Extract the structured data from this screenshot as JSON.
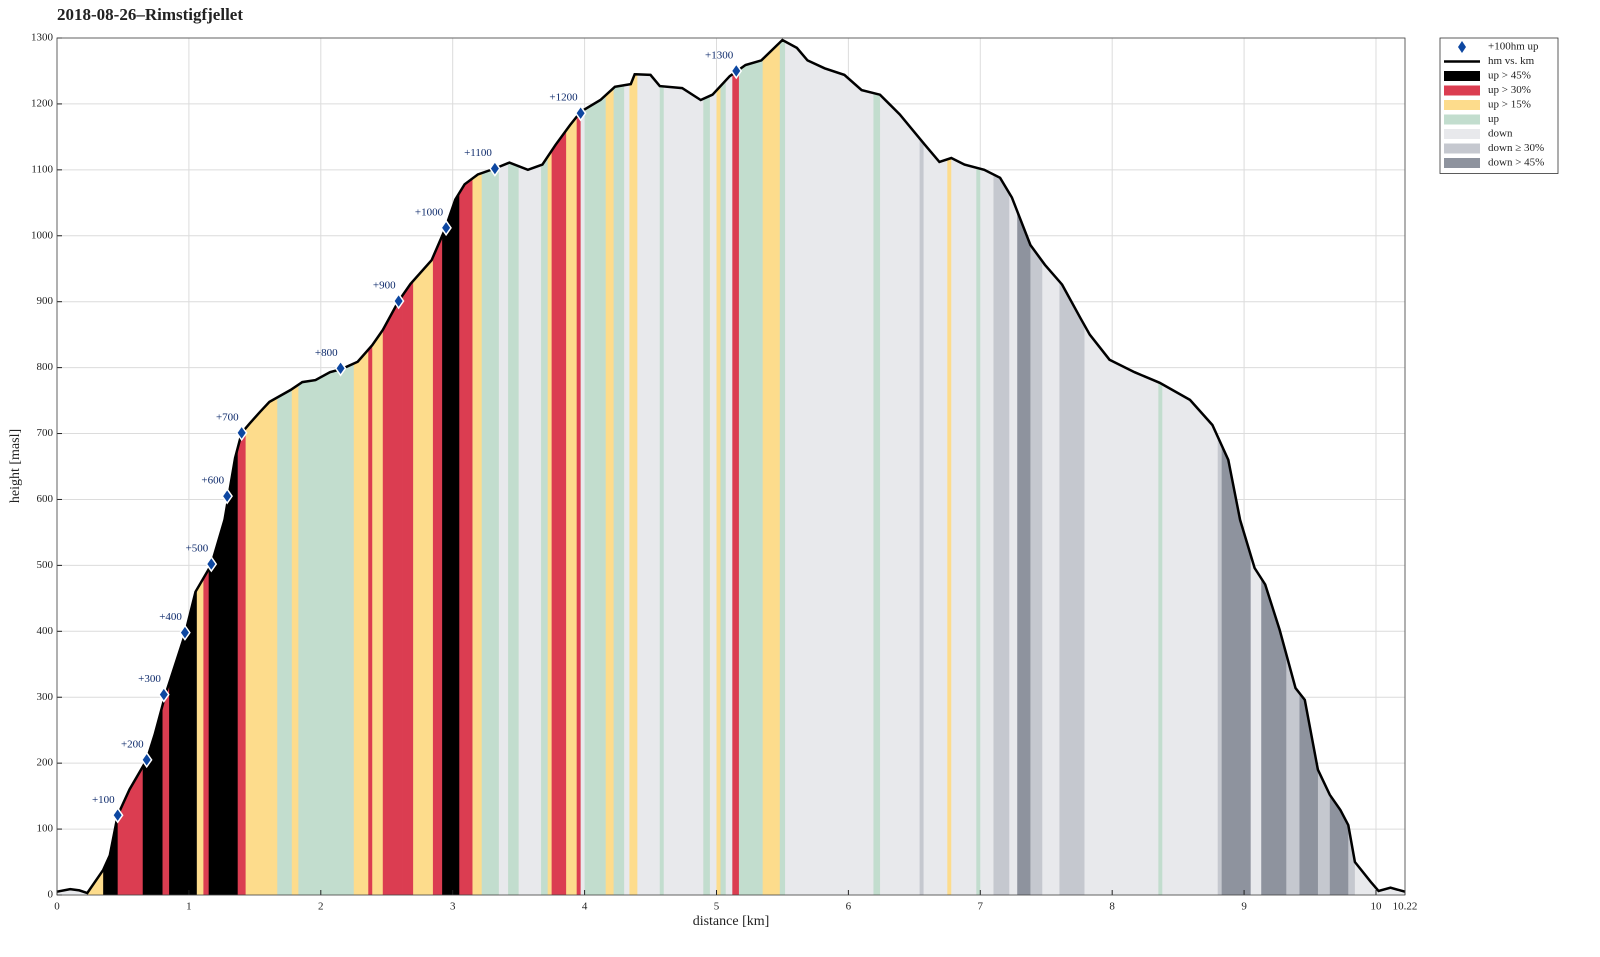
{
  "chart_data": {
    "type": "area",
    "title": "2018-08-26–Rimstigfjellet",
    "x_label": "distance [km]",
    "y_label": "height [masl]",
    "xlim": [
      0,
      10.22
    ],
    "ylim": [
      0,
      1300
    ],
    "xticks": [
      0,
      1,
      2,
      3,
      4,
      5,
      6,
      7,
      8,
      9,
      10,
      10.22
    ],
    "yticks": [
      0,
      100,
      200,
      300,
      400,
      500,
      600,
      700,
      800,
      900,
      1000,
      1100,
      1200,
      1300
    ],
    "grid": true,
    "legend": "outside-top-right",
    "profile": {
      "name": "hm vs. km",
      "color": "#000000",
      "x": [
        0,
        0.1,
        0.17,
        0.23,
        0.35,
        0.4,
        0.46,
        0.55,
        0.68,
        0.74,
        0.82,
        0.97,
        1.05,
        1.17,
        1.27,
        1.35,
        1.4,
        1.46,
        1.54,
        1.61,
        1.77,
        1.86,
        1.96,
        2.07,
        2.16,
        2.28,
        2.39,
        2.47,
        2.59,
        2.68,
        2.84,
        2.94,
        3.02,
        3.09,
        3.19,
        3.32,
        3.43,
        3.57,
        3.68,
        3.78,
        3.89,
        3.97,
        4.12,
        4.23,
        4.35,
        4.38,
        4.5,
        4.57,
        4.74,
        4.88,
        4.97,
        5.1,
        5.22,
        5.34,
        5.5,
        5.61,
        5.69,
        5.82,
        5.97,
        6.1,
        6.24,
        6.39,
        6.58,
        6.69,
        6.78,
        6.88,
        7.03,
        7.15,
        7.24,
        7.38,
        7.49,
        7.62,
        7.76,
        7.83,
        7.98,
        8.17,
        8.36,
        8.59,
        8.76,
        8.88,
        8.97,
        9.08,
        9.16,
        9.27,
        9.39,
        9.46,
        9.56,
        9.65,
        9.73,
        9.79,
        9.84,
        9.96,
        10.02,
        10.11,
        10.22
      ],
      "values": [
        5,
        9,
        7,
        3,
        38,
        60,
        121,
        160,
        205,
        243,
        303,
        395,
        460,
        501,
        569,
        663,
        701,
        715,
        733,
        748,
        766,
        778,
        781,
        793,
        798,
        809,
        834,
        857,
        901,
        927,
        963,
        1009,
        1055,
        1078,
        1093,
        1102,
        1111,
        1100,
        1108,
        1138,
        1168,
        1188,
        1206,
        1226,
        1230,
        1245,
        1244,
        1227,
        1224,
        1206,
        1214,
        1242,
        1259,
        1266,
        1297,
        1285,
        1266,
        1254,
        1244,
        1221,
        1214,
        1184,
        1138,
        1112,
        1118,
        1108,
        1100,
        1088,
        1058,
        986,
        956,
        926,
        875,
        850,
        812,
        793,
        777,
        751,
        713,
        660,
        569,
        496,
        471,
        402,
        314,
        296,
        190,
        152,
        129,
        106,
        50,
        20,
        6,
        11,
        5
      ]
    },
    "markers": {
      "name": "+100hm up",
      "color": "#0d47a1",
      "x": [
        0.46,
        0.68,
        0.81,
        0.97,
        1.17,
        1.29,
        1.4,
        2.15,
        2.59,
        2.95,
        3.32,
        3.97,
        5.15
      ],
      "values": [
        121,
        205,
        304,
        398,
        502,
        605,
        701,
        799,
        901,
        1012,
        1102,
        1186,
        1250
      ],
      "labels": [
        "+100",
        "+200",
        "+300",
        "+400",
        "+500",
        "+600",
        "+700",
        "+800",
        "+900",
        "+1000",
        "+1100",
        "+1200",
        "+1300"
      ]
    },
    "kinds": [
      {
        "name": "up > 45%",
        "color": "#000000"
      },
      {
        "name": "up > 30%",
        "color": "#db3d51"
      },
      {
        "name": "up > 15%",
        "color": "#fddc8c"
      },
      {
        "name": "up",
        "color": "#c2ddce"
      },
      {
        "name": "down",
        "color": "#e8e9ec"
      },
      {
        "name": "down ≥ 30%",
        "color": "#c5c8cf"
      },
      {
        "name": "down > 45%",
        "color": "#8e939e"
      }
    ],
    "bands": [
      [
        0,
        0.23,
        "down"
      ],
      [
        0.23,
        0.35,
        "up > 15%"
      ],
      [
        0.35,
        0.46,
        "up > 45%"
      ],
      [
        0.46,
        0.65,
        "up > 30%"
      ],
      [
        0.65,
        0.8,
        "up > 45%"
      ],
      [
        0.8,
        0.85,
        "up > 30%"
      ],
      [
        0.85,
        1.06,
        "up > 45%"
      ],
      [
        1.06,
        1.11,
        "up > 15%"
      ],
      [
        1.11,
        1.15,
        "up > 30%"
      ],
      [
        1.15,
        1.37,
        "up > 45%"
      ],
      [
        1.37,
        1.43,
        "up > 30%"
      ],
      [
        1.43,
        1.67,
        "up > 15%"
      ],
      [
        1.67,
        1.78,
        "up"
      ],
      [
        1.78,
        1.83,
        "up > 15%"
      ],
      [
        1.83,
        2.25,
        "up"
      ],
      [
        2.25,
        2.36,
        "up > 15%"
      ],
      [
        2.36,
        2.39,
        "up > 30%"
      ],
      [
        2.39,
        2.47,
        "up > 15%"
      ],
      [
        2.47,
        2.62,
        "up > 30%"
      ],
      [
        2.62,
        2.7,
        "up > 30%"
      ],
      [
        2.7,
        2.85,
        "up > 15%"
      ],
      [
        2.85,
        2.92,
        "up > 30%"
      ],
      [
        2.92,
        3.05,
        "up > 45%"
      ],
      [
        3.05,
        3.15,
        "up > 30%"
      ],
      [
        3.15,
        3.22,
        "up > 15%"
      ],
      [
        3.22,
        3.35,
        "up"
      ],
      [
        3.35,
        3.42,
        "down"
      ],
      [
        3.42,
        3.5,
        "up"
      ],
      [
        3.5,
        3.67,
        "down"
      ],
      [
        3.67,
        3.72,
        "up"
      ],
      [
        3.72,
        3.75,
        "up > 15%"
      ],
      [
        3.75,
        3.86,
        "up > 30%"
      ],
      [
        3.86,
        3.94,
        "up > 15%"
      ],
      [
        3.94,
        3.97,
        "up > 30%"
      ],
      [
        3.97,
        4.0,
        "down"
      ],
      [
        4.0,
        4.16,
        "up"
      ],
      [
        4.16,
        4.22,
        "up > 15%"
      ],
      [
        4.22,
        4.3,
        "up"
      ],
      [
        4.3,
        4.34,
        "down"
      ],
      [
        4.34,
        4.4,
        "up > 15%"
      ],
      [
        4.4,
        4.57,
        "down"
      ],
      [
        4.57,
        4.6,
        "up"
      ],
      [
        4.6,
        4.9,
        "down"
      ],
      [
        4.9,
        4.95,
        "up"
      ],
      [
        4.95,
        5.0,
        "down"
      ],
      [
        5.0,
        5.03,
        "up > 15%"
      ],
      [
        5.03,
        5.07,
        "up"
      ],
      [
        5.07,
        5.12,
        "down"
      ],
      [
        5.12,
        5.17,
        "up > 30%"
      ],
      [
        5.17,
        5.35,
        "up"
      ],
      [
        5.35,
        5.48,
        "up > 15%"
      ],
      [
        5.48,
        5.52,
        "up"
      ],
      [
        5.52,
        6.19,
        "down"
      ],
      [
        6.19,
        6.24,
        "up"
      ],
      [
        6.24,
        6.54,
        "down"
      ],
      [
        6.54,
        6.57,
        "down ≥ 30%"
      ],
      [
        6.57,
        6.75,
        "down"
      ],
      [
        6.75,
        6.78,
        "up > 15%"
      ],
      [
        6.78,
        6.97,
        "down"
      ],
      [
        6.97,
        7.0,
        "up"
      ],
      [
        7.0,
        7.1,
        "down"
      ],
      [
        7.1,
        7.22,
        "down ≥ 30%"
      ],
      [
        7.22,
        7.28,
        "down"
      ],
      [
        7.28,
        7.38,
        "down > 45%"
      ],
      [
        7.38,
        7.47,
        "down ≥ 30%"
      ],
      [
        7.47,
        7.6,
        "down"
      ],
      [
        7.6,
        7.79,
        "down ≥ 30%"
      ],
      [
        7.79,
        8.35,
        "down"
      ],
      [
        8.35,
        8.38,
        "up"
      ],
      [
        8.38,
        8.8,
        "down"
      ],
      [
        8.8,
        8.83,
        "down ≥ 30%"
      ],
      [
        8.83,
        9.05,
        "down > 45%"
      ],
      [
        9.05,
        9.13,
        "down"
      ],
      [
        9.13,
        9.32,
        "down > 45%"
      ],
      [
        9.32,
        9.42,
        "down ≥ 30%"
      ],
      [
        9.42,
        9.56,
        "down > 45%"
      ],
      [
        9.56,
        9.65,
        "down ≥ 30%"
      ],
      [
        9.65,
        9.79,
        "down > 45%"
      ],
      [
        9.79,
        9.84,
        "down ≥ 30%"
      ],
      [
        9.84,
        10.22,
        "down"
      ]
    ]
  }
}
